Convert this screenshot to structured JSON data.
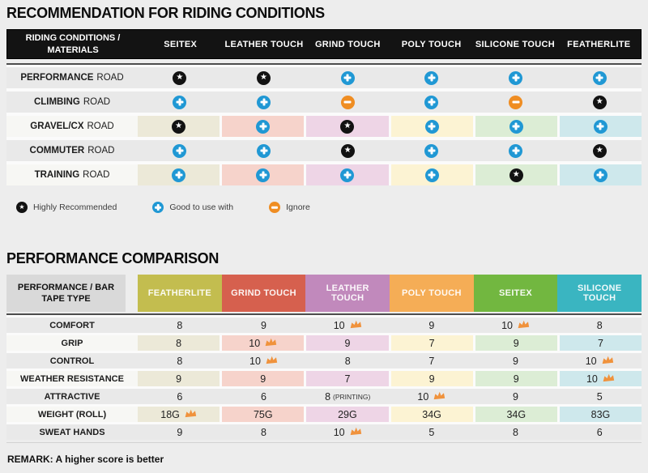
{
  "page": {
    "background": "#ededed"
  },
  "icon_colors": {
    "star": "#121212",
    "plus": "#2098d4",
    "minus": "#ef8d22"
  },
  "recommendation_table": {
    "title": "RECOMMENDATION FOR RIDING CONDITIONS",
    "header": {
      "label": "RIDING CONDITIONS / MATERIALS",
      "columns": [
        "SEITEX",
        "LEATHER TOUCH",
        "GRIND TOUCH",
        "POLY TOUCH",
        "SILICONE TOUCH",
        "FEATHERLITE"
      ]
    },
    "column_tints": [
      "#ece9d8",
      "#f6d3cb",
      "#eed5e6",
      "#fcf3d3",
      "#dcedd5",
      "#cee8ec"
    ],
    "rows": [
      {
        "label_bold": "PERFORMANCE",
        "label_rest": "ROAD",
        "tinted": false,
        "cells": [
          "star",
          "star",
          "plus",
          "plus",
          "plus",
          "plus"
        ]
      },
      {
        "label_bold": "CLIMBING",
        "label_rest": "ROAD",
        "tinted": false,
        "cells": [
          "plus",
          "plus",
          "minus",
          "plus",
          "minus",
          "star"
        ]
      },
      {
        "label_bold": "GRAVEL/CX",
        "label_rest": "ROAD",
        "tinted": true,
        "cells": [
          "star",
          "plus",
          "star",
          "plus",
          "plus",
          "plus"
        ]
      },
      {
        "label_bold": "COMMUTER",
        "label_rest": "ROAD",
        "tinted": false,
        "cells": [
          "plus",
          "plus",
          "star",
          "plus",
          "plus",
          "star"
        ]
      },
      {
        "label_bold": "TRAINING",
        "label_rest": "ROAD",
        "tinted": true,
        "cells": [
          "plus",
          "plus",
          "plus",
          "plus",
          "star",
          "plus"
        ]
      }
    ],
    "legend": [
      {
        "icon": "star",
        "label": "Highly Recommended"
      },
      {
        "icon": "plus",
        "label": "Good to use with"
      },
      {
        "icon": "minus",
        "label": "Ignore"
      }
    ]
  },
  "performance_table": {
    "title": "PERFORMANCE COMPARISON",
    "header": {
      "label": "PERFORMANCE / BAR TAPE TYPE",
      "columns": [
        {
          "label": "FEATHERLITE",
          "color": "#c3bd4f"
        },
        {
          "label": "GRIND TOUCH",
          "color": "#d6604e"
        },
        {
          "label": "LEATHER TOUCH",
          "color": "#c189bc"
        },
        {
          "label": "POLY TOUCH",
          "color": "#f5ad56"
        },
        {
          "label": "SEITEX",
          "color": "#72b740"
        },
        {
          "label": "SILICONE TOUCH",
          "color": "#3ab5c1"
        }
      ]
    },
    "column_tints": [
      "#ece9d8",
      "#f6d3cb",
      "#eed5e6",
      "#fcf3d3",
      "#dcedd5",
      "#cee8ec"
    ],
    "crown_color": "#f0923c",
    "rows": [
      {
        "label": "COMFORT",
        "tinted": false,
        "cells": [
          {
            "value": "8"
          },
          {
            "value": "9"
          },
          {
            "value": "10",
            "crown": true
          },
          {
            "value": "9"
          },
          {
            "value": "10",
            "crown": true
          },
          {
            "value": "8"
          }
        ]
      },
      {
        "label": "GRIP",
        "tinted": true,
        "cells": [
          {
            "value": "8"
          },
          {
            "value": "10",
            "crown": true
          },
          {
            "value": "9"
          },
          {
            "value": "7"
          },
          {
            "value": "9"
          },
          {
            "value": "7"
          }
        ]
      },
      {
        "label": "CONTROL",
        "tinted": false,
        "cells": [
          {
            "value": "8"
          },
          {
            "value": "10",
            "crown": true
          },
          {
            "value": "8"
          },
          {
            "value": "7"
          },
          {
            "value": "9"
          },
          {
            "value": "10",
            "crown": true
          }
        ]
      },
      {
        "label": "WEATHER RESISTANCE",
        "tinted": true,
        "cells": [
          {
            "value": "9"
          },
          {
            "value": "9"
          },
          {
            "value": "7"
          },
          {
            "value": "9"
          },
          {
            "value": "9"
          },
          {
            "value": "10",
            "crown": true
          }
        ]
      },
      {
        "label": "ATTRACTIVE",
        "tinted": false,
        "cells": [
          {
            "value": "6"
          },
          {
            "value": "6"
          },
          {
            "value": "8",
            "suffix": "(PRINTING)"
          },
          {
            "value": "10",
            "crown": true
          },
          {
            "value": "9"
          },
          {
            "value": "5"
          }
        ]
      },
      {
        "label": "WEIGHT (ROLL)",
        "tinted": true,
        "cells": [
          {
            "value": "18G",
            "crown": true
          },
          {
            "value": "75G"
          },
          {
            "value": "29G"
          },
          {
            "value": "34G"
          },
          {
            "value": "34G"
          },
          {
            "value": "83G"
          }
        ]
      },
      {
        "label": "SWEAT HANDS",
        "tinted": false,
        "cells": [
          {
            "value": "9"
          },
          {
            "value": "8"
          },
          {
            "value": "10",
            "crown": true
          },
          {
            "value": "5"
          },
          {
            "value": "8"
          },
          {
            "value": "6"
          }
        ]
      }
    ],
    "remark": "REMARK: A higher score is better"
  }
}
